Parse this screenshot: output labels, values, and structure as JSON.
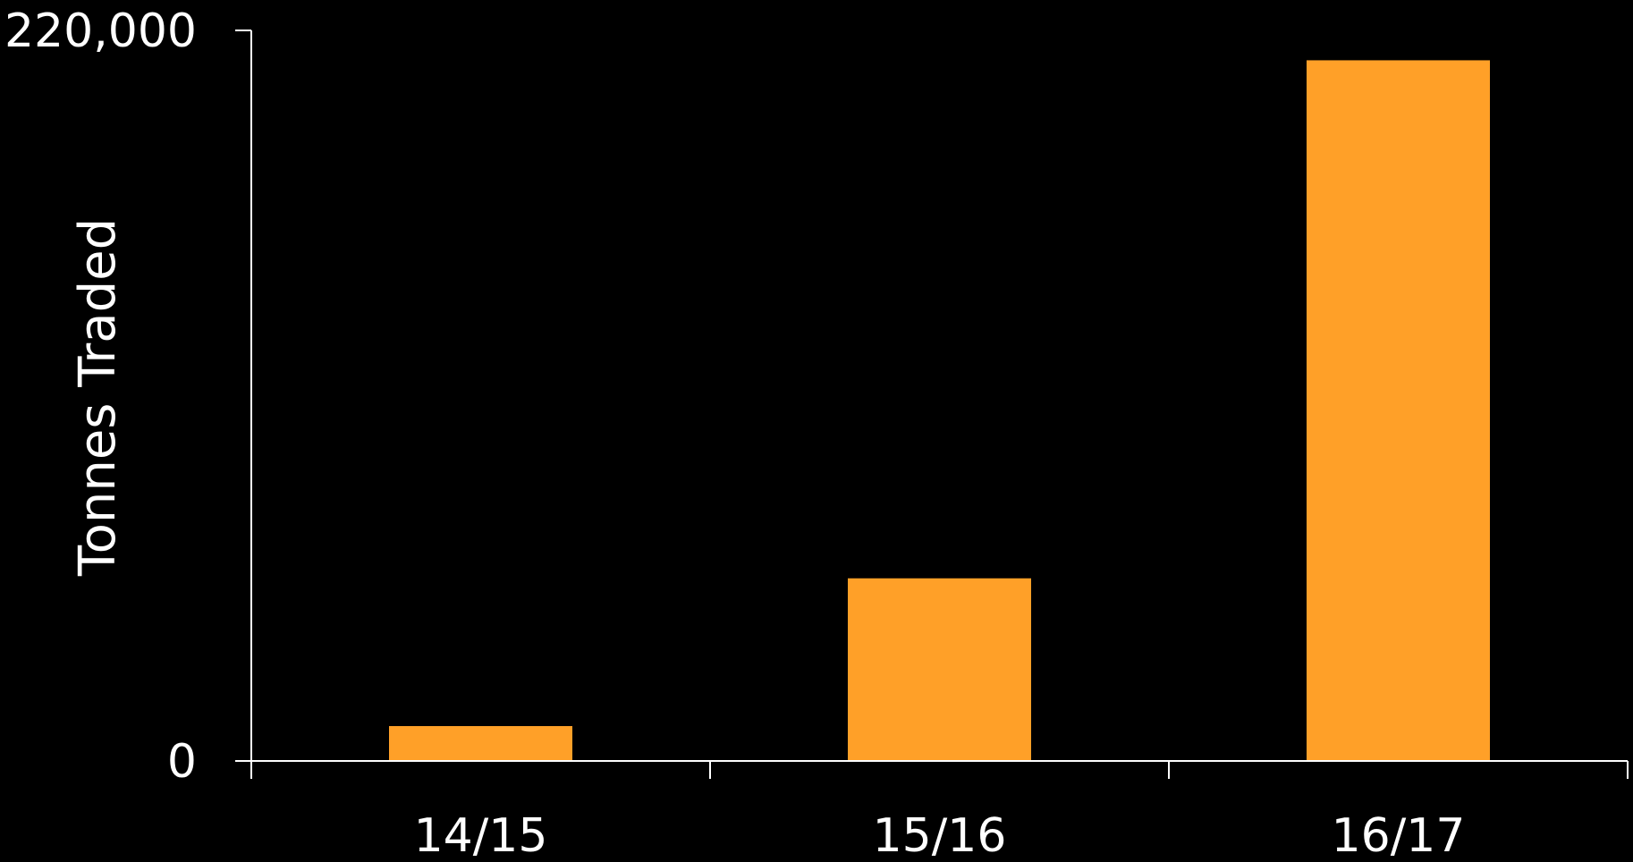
{
  "chart_data": {
    "type": "bar",
    "title": "",
    "xlabel": "",
    "ylabel": "Tonnes Traded",
    "categories": [
      "14/15",
      "15/16",
      "16/17"
    ],
    "values": [
      10500,
      55000,
      211000
    ],
    "ylim": [
      0,
      220000
    ],
    "y_tick_labels": [
      "0",
      "220,000"
    ],
    "y_ticks": [
      0,
      220000
    ],
    "grid": false,
    "legend": "none",
    "colors": {
      "background": "#000000",
      "bar": "#FFA028",
      "axis": "#FFFFFF",
      "text": "#FFFFFF"
    }
  }
}
